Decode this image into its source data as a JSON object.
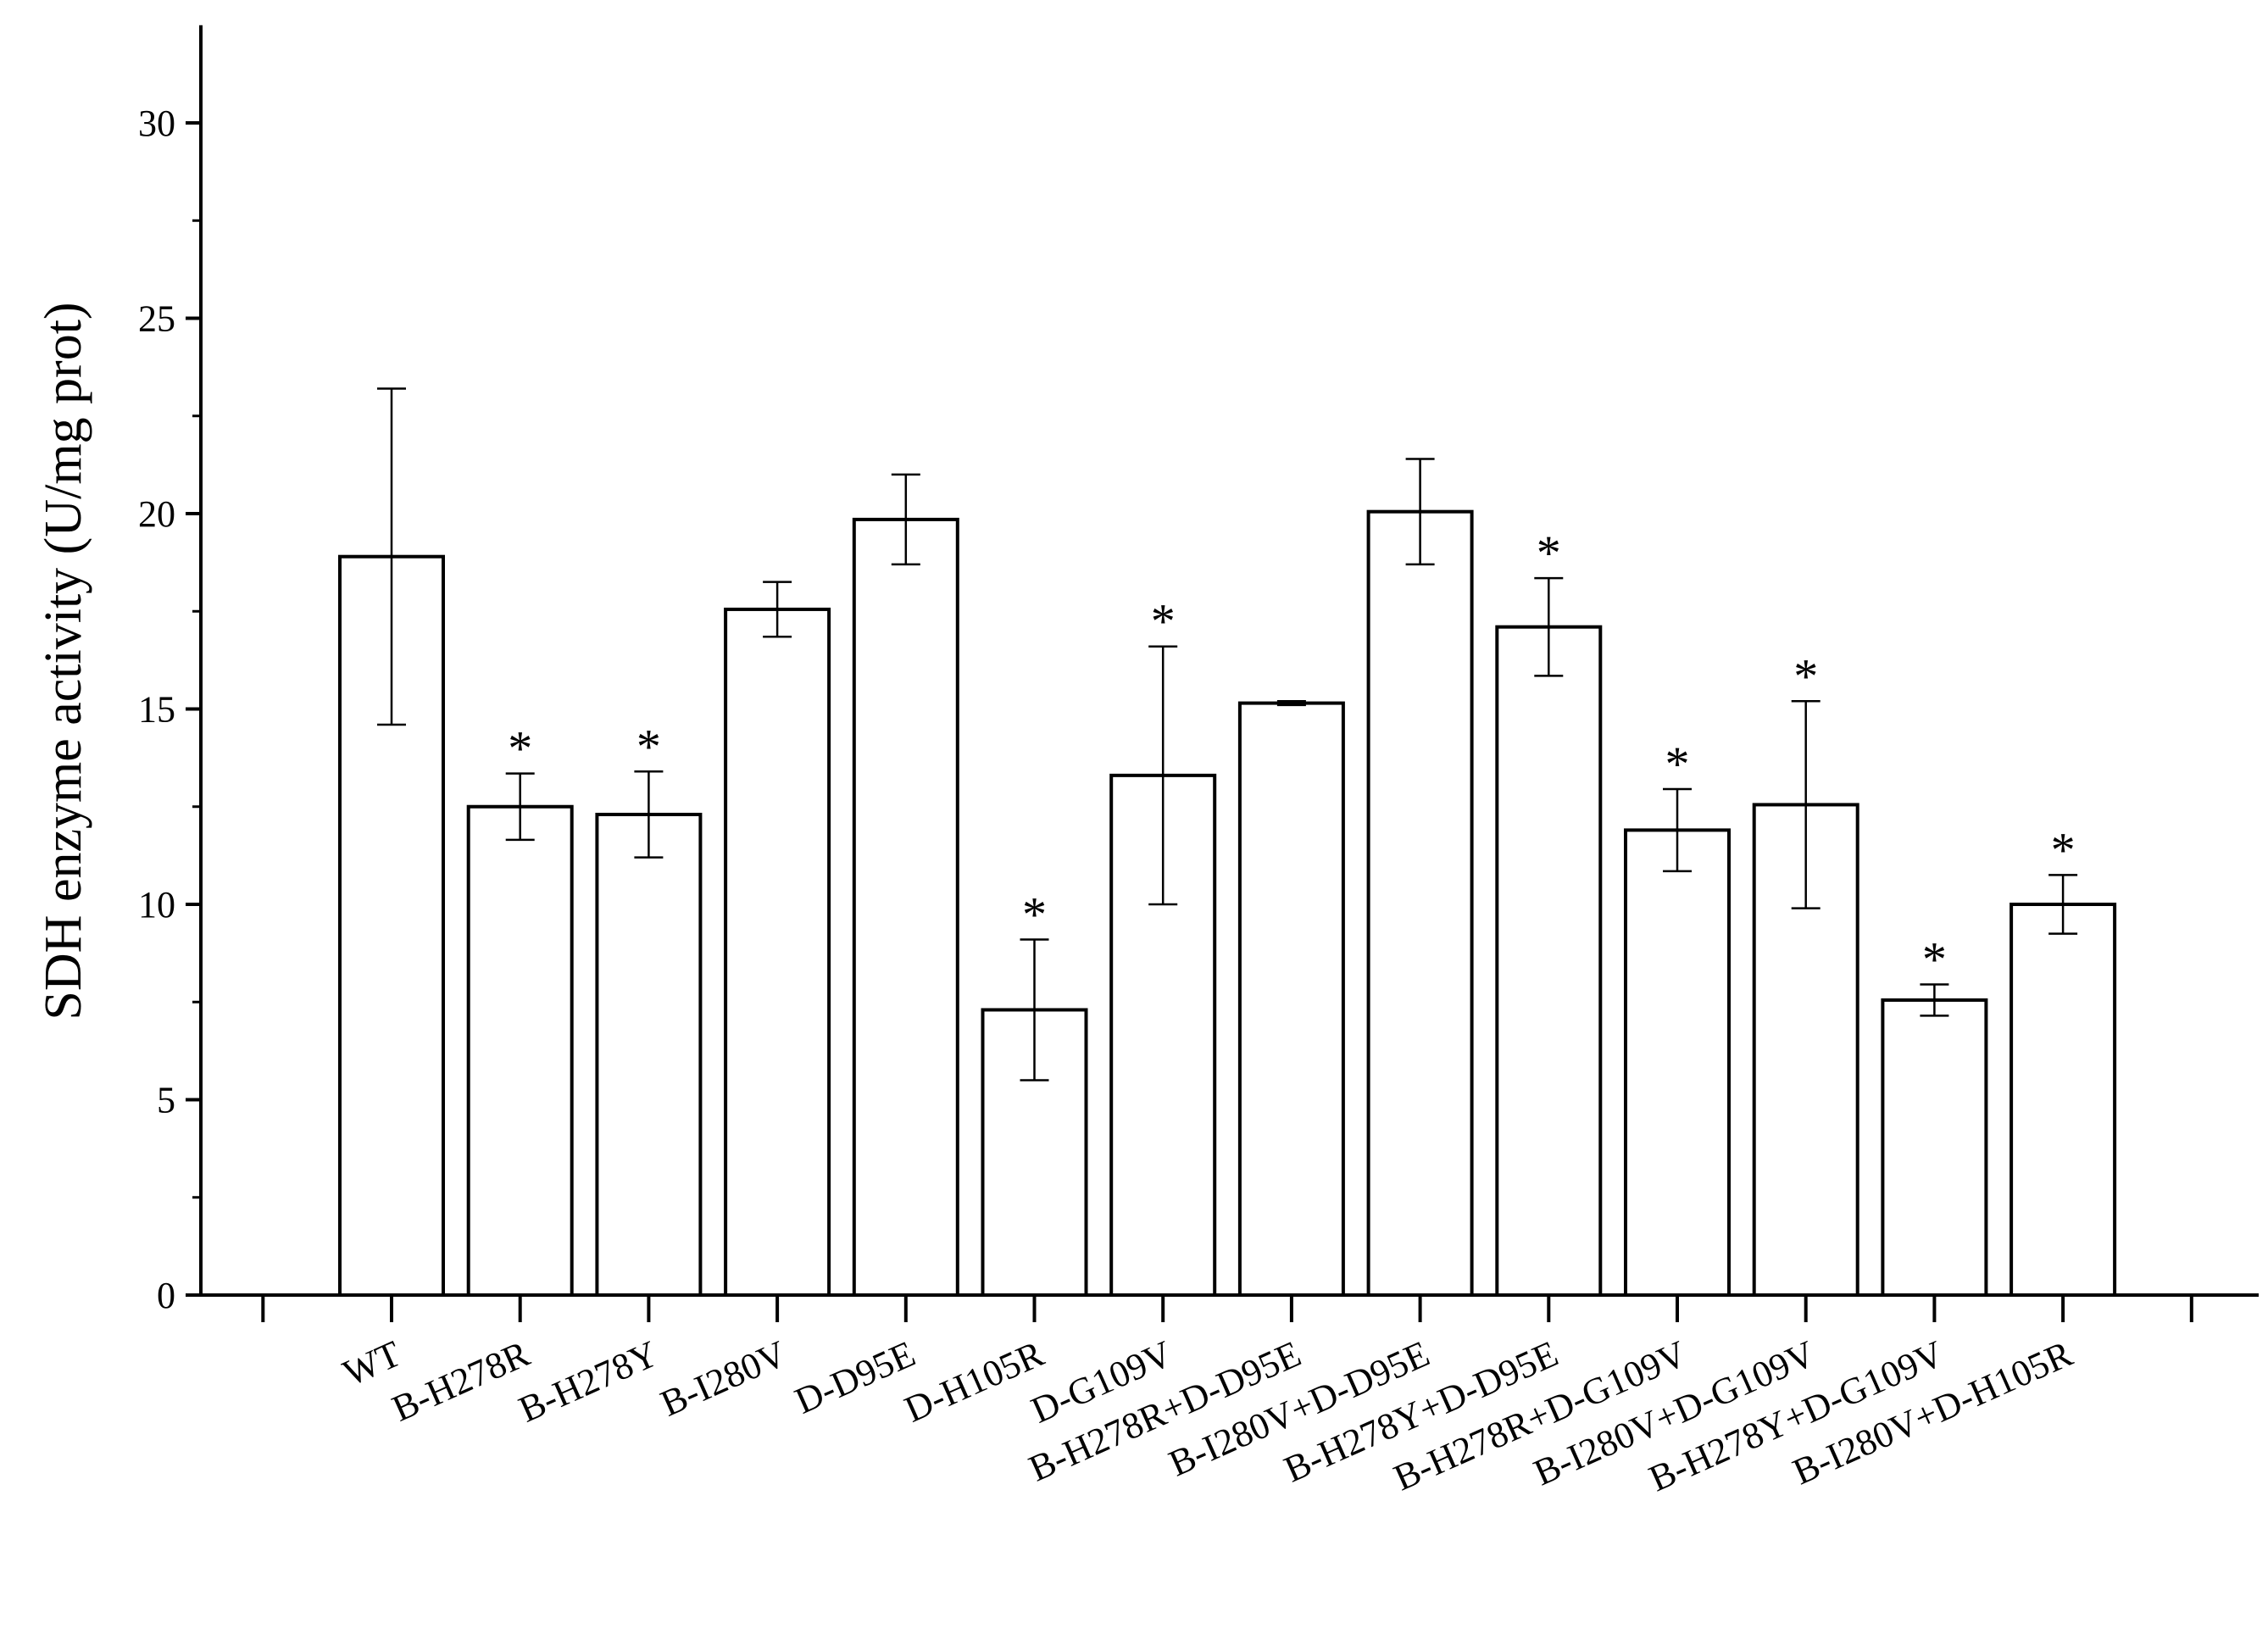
{
  "chart_data": {
    "type": "bar",
    "title": "",
    "xlabel": "",
    "ylabel": "SDH enzyme activity (U/mg prot)",
    "ylim": [
      0,
      32.5
    ],
    "yticks": [
      0,
      5,
      10,
      15,
      20,
      25,
      30
    ],
    "categories": [
      "WT",
      "B-H278R",
      "B-H278Y",
      "B-I280V",
      "D-D95E",
      "D-H105R",
      "D-G109V",
      "B-H278R+D-D95E",
      "B-I280V+D-D95E",
      "B-H278Y+D-D95E",
      "B-H278R+D-G109V",
      "B-I280V+D-G109V",
      "B-H278Y+D-G109V",
      "B-I280V+D-H105R"
    ],
    "values": [
      18.9,
      12.5,
      12.3,
      17.55,
      19.85,
      7.3,
      13.3,
      15.15,
      20.05,
      17.1,
      11.9,
      12.55,
      7.55,
      10.0
    ],
    "errors": [
      4.3,
      0.85,
      1.1,
      0.7,
      1.15,
      1.8,
      3.3,
      0.05,
      1.35,
      1.25,
      1.05,
      2.65,
      0.4,
      0.75
    ],
    "significant": [
      false,
      true,
      true,
      false,
      false,
      true,
      true,
      false,
      false,
      true,
      true,
      true,
      true,
      true
    ],
    "significance_marker": "*",
    "grid": false,
    "legend": "none",
    "colors": {
      "bar_fill": "#ffffff",
      "bar_stroke": "#000000"
    }
  }
}
